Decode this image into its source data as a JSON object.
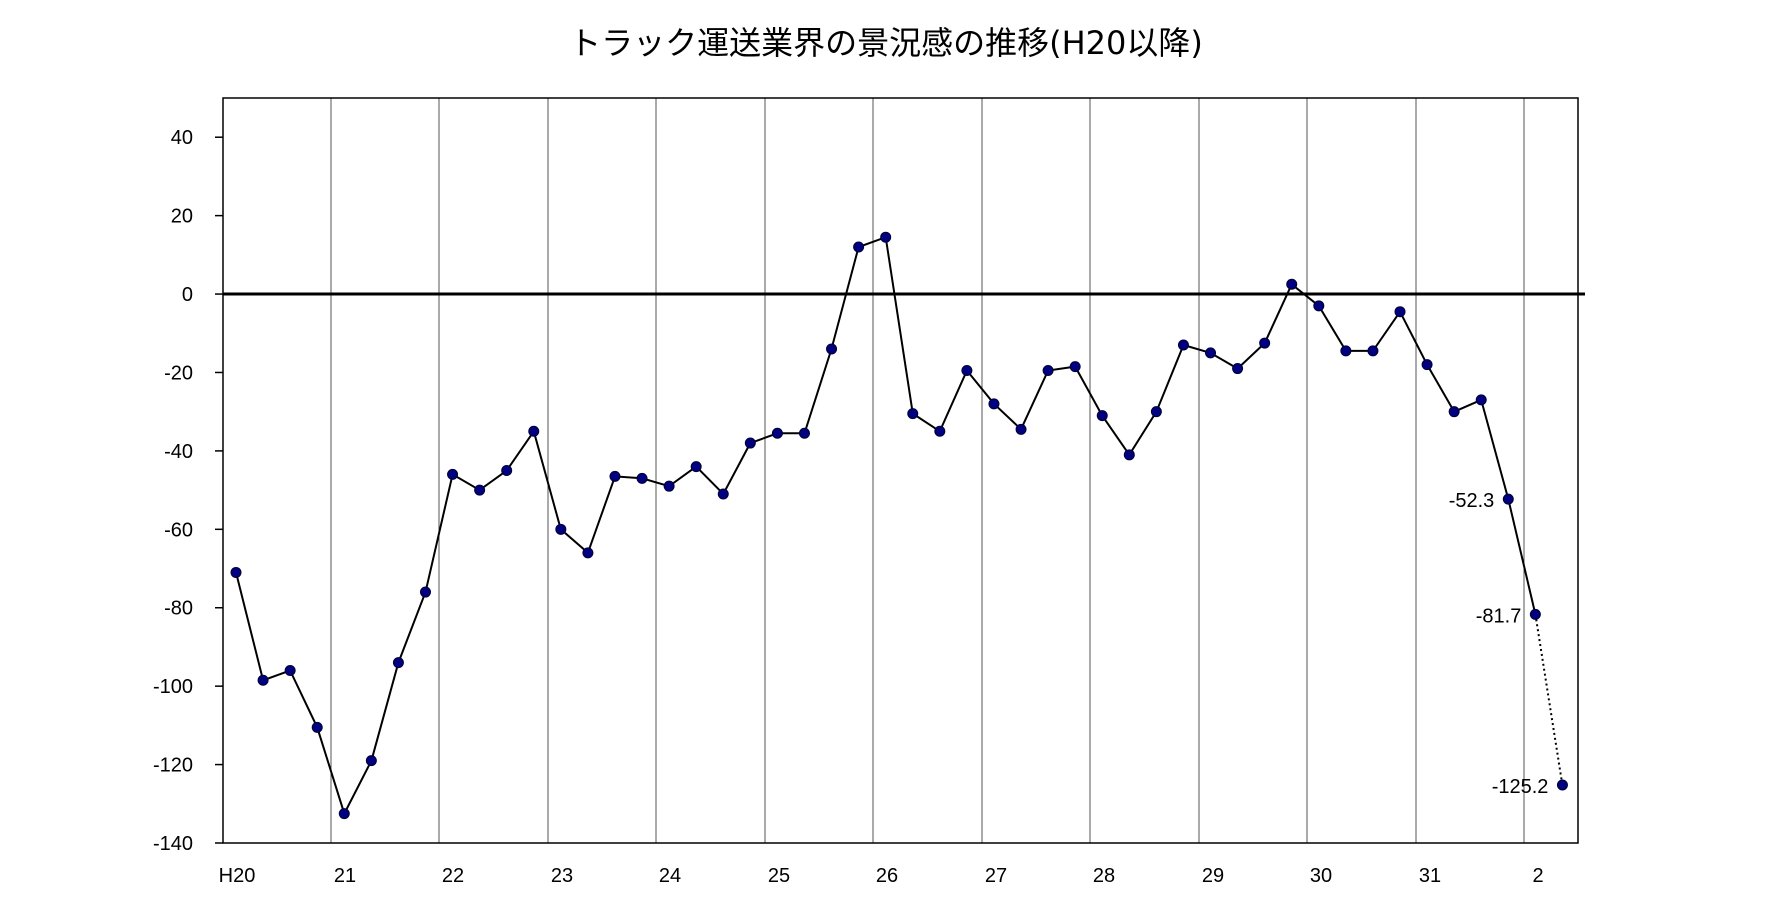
{
  "chart_data": {
    "type": "line",
    "title": "トラック運送業界の景況感の推移(H20以降)",
    "xlabel": "",
    "ylabel": "",
    "ylim": [
      -140,
      50
    ],
    "yticks": [
      40,
      20,
      0,
      -20,
      -40,
      -60,
      -80,
      -100,
      -120,
      -140
    ],
    "grid": "vertical lines at year boundaries",
    "x_tick_labels": [
      "H20",
      "21",
      "22",
      "23",
      "24",
      "25",
      "26",
      "27",
      "28",
      "29",
      "30",
      "31",
      "2"
    ],
    "series_color": "#000080",
    "line_color": "#000000",
    "values": [
      -71,
      -98.5,
      -96,
      -110.5,
      -132.5,
      -119,
      -94,
      -76,
      -46,
      -50,
      -45,
      -35,
      -60,
      -66,
      -46.5,
      -47,
      -49,
      -44,
      -51,
      -38,
      -35.5,
      -35.5,
      -14,
      12,
      14.5,
      -30.5,
      -35,
      -19.5,
      -28,
      -34.5,
      -19.5,
      -18.5,
      -31,
      -41,
      -30,
      -13,
      -15,
      -19,
      -12.5,
      2.5,
      -3,
      -14.5,
      -14.5,
      -4.5,
      -18,
      -30,
      -27,
      -52.3,
      -81.7,
      -125.2
    ],
    "forecast_from_index": 48,
    "data_labels": [
      {
        "index": 47,
        "text": "-52.3"
      },
      {
        "index": 48,
        "text": "-81.7"
      },
      {
        "index": 49,
        "text": "-125.2"
      }
    ]
  }
}
